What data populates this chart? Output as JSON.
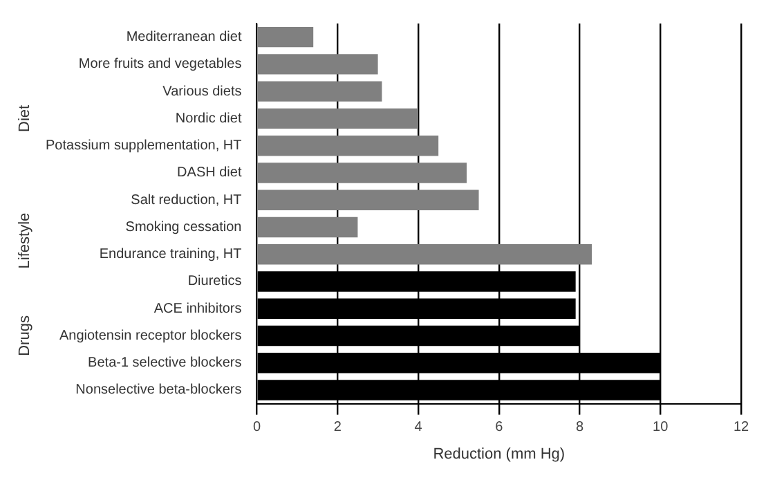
{
  "chart_data": {
    "type": "bar",
    "orientation": "horizontal",
    "xlabel": "Reduction (mm Hg)",
    "categories": [
      "Mediterranean diet",
      "More fruits and vegetables",
      "Various diets",
      "Nordic diet",
      "Potassium supplementation, HT",
      "DASH diet",
      "Salt reduction, HT",
      "Smoking cessation",
      "Endurance training, HT",
      "Diuretics",
      "ACE inhibitors",
      "Angiotensin receptor blockers",
      "Beta-1 selective blockers",
      "Nonselective beta-blockers"
    ],
    "values": [
      1.4,
      3.0,
      3.1,
      4.0,
      4.5,
      5.2,
      5.5,
      2.5,
      8.3,
      7.9,
      7.9,
      8.0,
      10,
      10
    ],
    "colors": [
      "#808080",
      "#808080",
      "#808080",
      "#808080",
      "#808080",
      "#808080",
      "#808080",
      "#808080",
      "#808080",
      "#000000",
      "#000000",
      "#000000",
      "#000000",
      "#000000"
    ],
    "xlim": [
      0,
      12
    ],
    "xticks": [
      0,
      2,
      4,
      6,
      8,
      10,
      12
    ],
    "grid": "x",
    "legend": false,
    "annotations": [
      "Diet",
      "Lifestyle",
      "Drugs"
    ]
  }
}
